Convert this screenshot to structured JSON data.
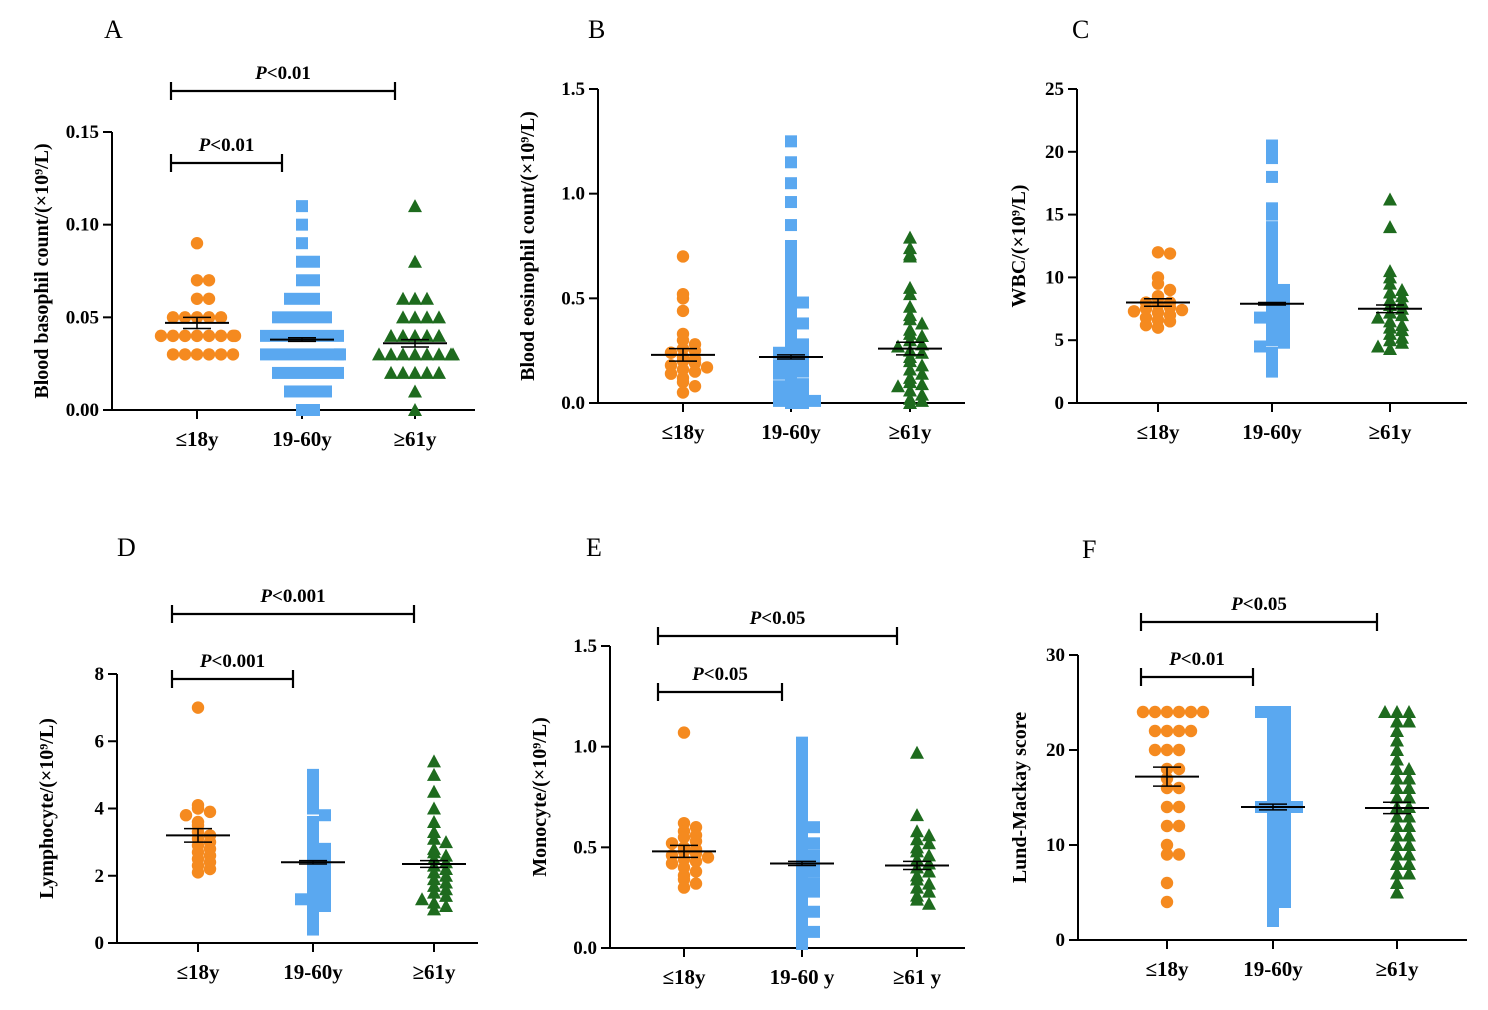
{
  "colors": {
    "g1": "#f58a1f",
    "g2": "#5aa8f0",
    "g3": "#1e6b1e",
    "axis": "#000000"
  },
  "chart_data": [
    {
      "panel": "A",
      "type": "scatter",
      "ylabel": "Blood basophil count/(×10⁹/L)",
      "ylim": [
        0,
        0.15
      ],
      "yticks": [
        "0.00",
        "0.05",
        "0.10",
        "0.15"
      ],
      "ytick_values": [
        0,
        0.05,
        0.1,
        0.15
      ],
      "categories": [
        "≤18y",
        "19-60y",
        "≥61y"
      ],
      "means": [
        0.047,
        0.038,
        0.036
      ],
      "sem": [
        0.003,
        0.001,
        0.002
      ],
      "groups": [
        [
          0.09,
          0.07,
          0.07,
          0.06,
          0.06,
          0.05,
          0.05,
          0.05,
          0.05,
          0.05,
          0.04,
          0.04,
          0.04,
          0.04,
          0.04,
          0.04,
          0.04,
          0.04,
          0.03,
          0.03,
          0.03,
          0.03,
          0.03,
          0.03
        ],
        [
          0.11,
          0.1,
          0.09,
          0.08,
          0.08,
          0.07,
          0.07,
          0.06,
          0.06,
          0.06,
          0.05,
          0.05,
          0.05,
          0.05,
          0.05,
          0.04,
          0.04,
          0.04,
          0.04,
          0.04,
          0.04,
          0.04,
          0.03,
          0.03,
          0.03,
          0.03,
          0.03,
          0.03,
          0.03,
          0.03,
          0.02,
          0.02,
          0.02,
          0.02,
          0.02,
          0.02,
          0.01,
          0.01,
          0.01,
          0.01,
          0.0,
          0.0
        ],
        [
          0.11,
          0.08,
          0.06,
          0.06,
          0.06,
          0.05,
          0.05,
          0.05,
          0.05,
          0.04,
          0.04,
          0.04,
          0.04,
          0.04,
          0.03,
          0.03,
          0.03,
          0.03,
          0.03,
          0.03,
          0.03,
          0.03,
          0.02,
          0.02,
          0.02,
          0.02,
          0.02,
          0.01,
          0.0
        ]
      ],
      "significance": [
        {
          "from": 0,
          "to": 1,
          "label": "P<0.01"
        },
        {
          "from": 0,
          "to": 2,
          "label": "P<0.01"
        }
      ]
    },
    {
      "panel": "B",
      "type": "scatter",
      "ylabel": "Blood eosinophil count/(×10⁹/L)",
      "ylim": [
        0,
        1.5
      ],
      "yticks": [
        "0.0",
        "0.5",
        "1.0",
        "1.5"
      ],
      "ytick_values": [
        0,
        0.5,
        1.0,
        1.5
      ],
      "categories": [
        "≤18y",
        "19-60y",
        "≥61y"
      ],
      "means": [
        0.23,
        0.22,
        0.26
      ],
      "sem": [
        0.03,
        0.01,
        0.03
      ],
      "groups": [
        [
          0.7,
          0.52,
          0.5,
          0.44,
          0.33,
          0.3,
          0.28,
          0.26,
          0.25,
          0.24,
          0.22,
          0.21,
          0.2,
          0.19,
          0.18,
          0.17,
          0.16,
          0.15,
          0.14,
          0.12,
          0.1,
          0.08,
          0.05
        ],
        [
          1.25,
          1.15,
          1.05,
          0.96,
          0.85,
          0.75,
          0.7,
          0.65,
          0.6,
          0.55,
          0.5,
          0.48,
          0.45,
          0.42,
          0.4,
          0.38,
          0.35,
          0.32,
          0.3,
          0.28,
          0.26,
          0.25,
          0.24,
          0.22,
          0.2,
          0.19,
          0.18,
          0.16,
          0.15,
          0.14,
          0.12,
          0.1,
          0.09,
          0.08,
          0.06,
          0.05,
          0.04,
          0.03,
          0.02,
          0.01,
          0.01,
          0.0,
          0.0
        ],
        [
          0.79,
          0.74,
          0.71,
          0.7,
          0.55,
          0.52,
          0.46,
          0.42,
          0.4,
          0.38,
          0.35,
          0.33,
          0.32,
          0.3,
          0.28,
          0.27,
          0.25,
          0.24,
          0.22,
          0.2,
          0.18,
          0.16,
          0.14,
          0.12,
          0.1,
          0.09,
          0.08,
          0.06,
          0.04,
          0.02,
          0.01,
          0.0
        ]
      ],
      "significance": []
    },
    {
      "panel": "C",
      "type": "scatter",
      "ylabel": "WBC/(×10⁹/L)",
      "ylim": [
        0,
        25
      ],
      "yticks": [
        "0",
        "5",
        "10",
        "15",
        "20",
        "25"
      ],
      "ytick_values": [
        0,
        5,
        10,
        15,
        20,
        25
      ],
      "categories": [
        "≤18y",
        "19-60y",
        "≥61y"
      ],
      "means": [
        8.0,
        7.9,
        7.5
      ],
      "sem": [
        0.3,
        0.1,
        0.3
      ],
      "groups": [
        [
          12.0,
          11.9,
          10.0,
          9.5,
          9.0,
          8.5,
          8.3,
          8.0,
          8.0,
          7.8,
          7.6,
          7.5,
          7.4,
          7.3,
          7.2,
          7.0,
          6.8,
          6.6,
          6.5,
          6.2,
          6.0
        ],
        [
          20.5,
          20.0,
          19.5,
          18.0,
          15.5,
          15.0,
          14.0,
          13.5,
          13.0,
          12.5,
          12.0,
          11.5,
          11.0,
          10.5,
          10.0,
          9.5,
          9.0,
          8.8,
          8.5,
          8.2,
          8.0,
          7.8,
          7.5,
          7.2,
          7.0,
          6.8,
          6.5,
          6.2,
          6.0,
          5.8,
          5.5,
          5.2,
          5.0,
          4.8,
          4.5,
          4.0,
          3.5,
          3.0,
          2.5
        ],
        [
          16.2,
          14.0,
          10.5,
          10.0,
          9.5,
          9.0,
          8.8,
          8.5,
          8.2,
          8.0,
          7.8,
          7.5,
          7.2,
          7.0,
          6.8,
          6.5,
          6.2,
          6.0,
          5.8,
          5.5,
          5.2,
          5.0,
          4.8,
          4.5,
          4.3
        ]
      ],
      "significance": []
    },
    {
      "panel": "D",
      "type": "scatter",
      "ylabel": "Lymphocyte/(×10⁹/L)",
      "ylim": [
        0,
        8
      ],
      "yticks": [
        "0",
        "2",
        "4",
        "6",
        "8"
      ],
      "ytick_values": [
        0,
        2,
        4,
        6,
        8
      ],
      "categories": [
        "≤18y",
        "19-60y",
        "≥61y"
      ],
      "means": [
        3.2,
        2.4,
        2.35
      ],
      "sem": [
        0.2,
        0.05,
        0.1
      ],
      "groups": [
        [
          7.0,
          4.1,
          4.0,
          3.9,
          3.8,
          3.6,
          3.5,
          3.3,
          3.2,
          3.1,
          3.0,
          2.9,
          2.8,
          2.7,
          2.6,
          2.5,
          2.4,
          2.3,
          2.2,
          2.1
        ],
        [
          5.0,
          4.8,
          4.5,
          4.2,
          4.0,
          3.8,
          3.6,
          3.4,
          3.2,
          3.0,
          2.9,
          2.8,
          2.7,
          2.6,
          2.5,
          2.4,
          2.3,
          2.2,
          2.1,
          2.0,
          1.9,
          1.8,
          1.7,
          1.6,
          1.5,
          1.4,
          1.3,
          1.2,
          1.1,
          1.0,
          0.8,
          0.6,
          0.4
        ],
        [
          5.4,
          5.0,
          4.5,
          4.0,
          3.6,
          3.3,
          3.1,
          3.0,
          2.8,
          2.7,
          2.6,
          2.5,
          2.4,
          2.3,
          2.2,
          2.1,
          2.0,
          1.9,
          1.8,
          1.7,
          1.6,
          1.5,
          1.4,
          1.3,
          1.2,
          1.1,
          1.0
        ]
      ],
      "significance": [
        {
          "from": 0,
          "to": 1,
          "label": "P<0.001"
        },
        {
          "from": 0,
          "to": 2,
          "label": "P<0.001"
        }
      ]
    },
    {
      "panel": "E",
      "type": "scatter",
      "ylabel": "Monocyte/(×10⁹/L)",
      "ylim": [
        0,
        1.5
      ],
      "yticks": [
        "0.0",
        "0.5",
        "1.0",
        "1.5"
      ],
      "ytick_values": [
        0,
        0.5,
        1.0,
        1.5
      ],
      "categories": [
        "≤18y",
        "19-60 y",
        "≥61  y"
      ],
      "means": [
        0.48,
        0.42,
        0.41
      ],
      "sem": [
        0.03,
        0.01,
        0.02
      ],
      "groups": [
        [
          1.07,
          0.62,
          0.6,
          0.58,
          0.56,
          0.55,
          0.53,
          0.52,
          0.5,
          0.49,
          0.48,
          0.47,
          0.46,
          0.45,
          0.44,
          0.43,
          0.42,
          0.4,
          0.38,
          0.36,
          0.34,
          0.32,
          0.3
        ],
        [
          1.02,
          1.0,
          0.95,
          0.9,
          0.85,
          0.8,
          0.75,
          0.7,
          0.65,
          0.62,
          0.6,
          0.58,
          0.55,
          0.52,
          0.5,
          0.48,
          0.46,
          0.44,
          0.42,
          0.4,
          0.38,
          0.36,
          0.34,
          0.32,
          0.3,
          0.28,
          0.25,
          0.22,
          0.2,
          0.18,
          0.15,
          0.12,
          0.1,
          0.08,
          0.05,
          0.02
        ],
        [
          0.97,
          0.66,
          0.58,
          0.56,
          0.54,
          0.52,
          0.5,
          0.48,
          0.46,
          0.44,
          0.42,
          0.4,
          0.38,
          0.36,
          0.34,
          0.32,
          0.3,
          0.28,
          0.26,
          0.24,
          0.22
        ]
      ],
      "significance": [
        {
          "from": 0,
          "to": 1,
          "label": "P<0.05"
        },
        {
          "from": 0,
          "to": 2,
          "label": "P<0.05"
        }
      ]
    },
    {
      "panel": "F",
      "type": "scatter",
      "ylabel": "Lund-Mackay score",
      "ylim": [
        0,
        30
      ],
      "yticks": [
        "0",
        "10",
        "20",
        "30"
      ],
      "ytick_values": [
        0,
        10,
        20,
        30
      ],
      "categories": [
        "≤18y",
        "19-60y",
        "≥61y"
      ],
      "means": [
        17.2,
        14.0,
        13.9
      ],
      "sem": [
        1.0,
        0.3,
        0.6
      ],
      "groups": [
        [
          24,
          24,
          24,
          24,
          24,
          24,
          22,
          22,
          22,
          22,
          20,
          20,
          20,
          18,
          18,
          17,
          16,
          16,
          14,
          14,
          12,
          12,
          10,
          9,
          9,
          6,
          4
        ],
        [
          24,
          24,
          24,
          23,
          23,
          22,
          22,
          21,
          21,
          20,
          20,
          19,
          19,
          18,
          18,
          17,
          17,
          16,
          16,
          15,
          15,
          14,
          14,
          14,
          14,
          13,
          13,
          12,
          12,
          11,
          11,
          10,
          10,
          9,
          9,
          8,
          8,
          7,
          7,
          6,
          6,
          5,
          5,
          4,
          4,
          3,
          2
        ],
        [
          24,
          24,
          24,
          23,
          23,
          22,
          21,
          20,
          19,
          18,
          18,
          17,
          17,
          16,
          16,
          15,
          15,
          14,
          14,
          13,
          13,
          12,
          12,
          11,
          11,
          10,
          10,
          9,
          9,
          8,
          8,
          7,
          7,
          6,
          5
        ]
      ],
      "significance": [
        {
          "from": 0,
          "to": 1,
          "label": "P<0.01"
        },
        {
          "from": 0,
          "to": 2,
          "label": "P<0.05"
        }
      ]
    }
  ]
}
